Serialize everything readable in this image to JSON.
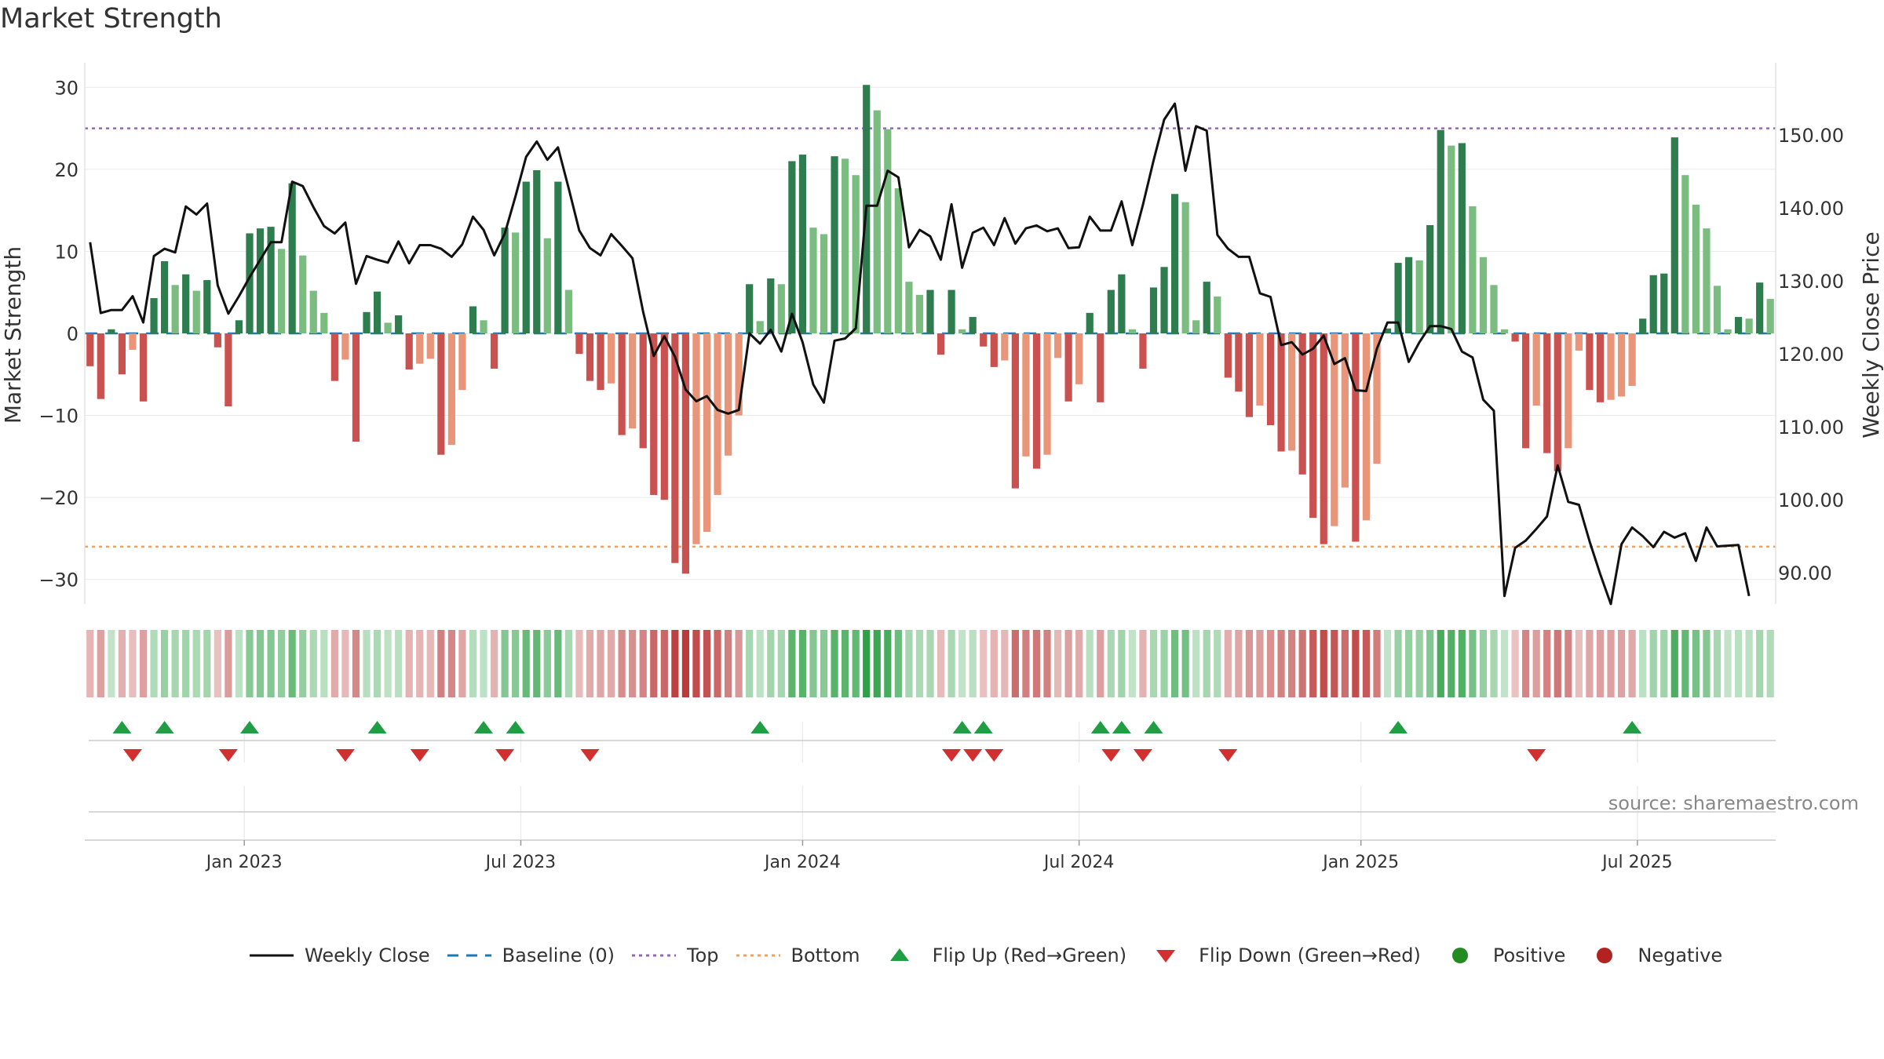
{
  "chart_data": {
    "type": "bar",
    "title": "Market Strength",
    "ylabel_left": "Market Strength",
    "ylabel_right": "Weekly Close Price",
    "y_left_range": [
      -33,
      33
    ],
    "y_left_ticks": [
      30,
      20,
      10,
      0,
      -10,
      -20,
      -30
    ],
    "y_left_tick_labels": [
      "30",
      "20",
      "10",
      "0",
      "−10",
      "−20",
      "−30"
    ],
    "y_right_range": [
      85.7,
      159.9
    ],
    "y_right_ticks": [
      150,
      140,
      130,
      120,
      110,
      100,
      90
    ],
    "y_right_tick_labels": [
      "150.00",
      "140.00",
      "130.00",
      "120.00",
      "110.00",
      "100.00",
      "90.00"
    ],
    "x_ticks": [
      {
        "label": "Jan 2023",
        "week": 15
      },
      {
        "label": "Jul 2023",
        "week": 41
      },
      {
        "label": "Jan 2024",
        "week": 67.5
      },
      {
        "label": "Jul 2024",
        "week": 93.5
      },
      {
        "label": "Jan 2025",
        "week": 120
      },
      {
        "label": "Jul 2025",
        "week": 146
      }
    ],
    "top_line": 25,
    "bottom_line": -26,
    "strength": [
      -4,
      -8,
      0.5,
      -5,
      -2,
      -8.3,
      4.3,
      8.8,
      5.9,
      7.2,
      5.2,
      6.5,
      -1.7,
      -8.9,
      1.6,
      12.2,
      12.8,
      13,
      10.3,
      18.3,
      9.5,
      5.2,
      2.5,
      -5.8,
      -3.2,
      -13.2,
      2.6,
      5.1,
      1.3,
      2.2,
      -4.4,
      -3.7,
      -3.1,
      -14.8,
      -13.6,
      -6.9,
      3.3,
      1.6,
      -4.3,
      12.9,
      12.3,
      18.5,
      19.9,
      11.6,
      18.5,
      5.3,
      -2.5,
      -5.8,
      -6.9,
      -6.1,
      -12.4,
      -11.6,
      -14,
      -19.7,
      -20.3,
      -28,
      -29.3,
      -25.7,
      -24.2,
      -19.7,
      -14.9,
      -10,
      6,
      1.5,
      6.7,
      6,
      21,
      21.8,
      12.9,
      12.1,
      21.6,
      21.3,
      19.3,
      30.3,
      27.2,
      24.9,
      17.7,
      6.3,
      4.7,
      5.3,
      -2.6,
      5.3,
      0.5,
      2,
      -1.6,
      -4.1,
      -3.3,
      -18.9,
      -15,
      -16.5,
      -14.8,
      -3,
      -8.3,
      -6.2,
      2.5,
      -8.4,
      5.3,
      7.2,
      0.5,
      -4.3,
      5.6,
      8.1,
      17,
      16,
      1.6,
      6.3,
      4.5,
      -5.4,
      -7.1,
      -10.2,
      -8.8,
      -11.2,
      -14.4,
      -14.3,
      -17.2,
      -22.5,
      -25.7,
      -23.5,
      -18.8,
      -25.4,
      -22.8,
      -15.9,
      0.6,
      8.6,
      9.3,
      8.9,
      13.2,
      24.8,
      22.9,
      23.2,
      15.5,
      9.3,
      5.9,
      0.5,
      -1,
      -14,
      -8.8,
      -14.6,
      -16.8,
      -14,
      -2.1,
      -6.9,
      -8.4,
      -8.1,
      -7.7,
      -6.4,
      1.8,
      7.1,
      7.3,
      23.9,
      19.3,
      15.7,
      12.8,
      5.8,
      0.5,
      2,
      1.8,
      6.2,
      4.2
    ],
    "weekly_close": [
      135.3,
      125.6,
      126,
      126,
      127.9,
      124.3,
      133.4,
      134.4,
      133.9,
      140.2,
      139.1,
      140.6,
      129.4,
      125.5,
      127.9,
      130.5,
      132.9,
      135.3,
      135.3,
      143.6,
      143,
      140.1,
      137.5,
      136.5,
      138,
      129.6,
      133.4,
      132.9,
      132.5,
      135.4,
      132.4,
      134.9,
      134.9,
      134.4,
      133.3,
      135,
      138.8,
      137,
      133.5,
      136.5,
      141.6,
      147,
      149.1,
      146.6,
      148.3,
      142.7,
      136.9,
      134.5,
      133.5,
      136.4,
      134.8,
      133.1,
      125.8,
      119.7,
      122.4,
      119.6,
      115.1,
      113.5,
      114.2,
      112.3,
      111.8,
      112.3,
      122.8,
      121.4,
      123.3,
      120.3,
      125.5,
      121.6,
      115.8,
      113.3,
      121.8,
      122.1,
      123.5,
      140.3,
      140.3,
      145.1,
      144.2,
      134.6,
      137,
      136.1,
      132.9,
      140.5,
      131.8,
      136.6,
      137.3,
      134.9,
      138.6,
      135.1,
      137.2,
      137.6,
      136.8,
      137.2,
      134.5,
      134.6,
      138.8,
      136.9,
      136.9,
      140.9,
      134.9,
      140.4,
      146.5,
      152.1,
      154.3,
      145.1,
      151.2,
      150.6,
      136.3,
      134.4,
      133.3,
      133.3,
      128.3,
      127.8,
      121.2,
      121.6,
      119.9,
      120.7,
      122.5,
      118.6,
      119.4,
      115,
      114.9,
      120.7,
      124.3,
      124.3,
      118.9,
      121.6,
      123.8,
      123.8,
      123.4,
      120.3,
      119.5,
      113.7,
      112.2,
      86.8,
      93.4,
      94.4,
      96,
      97.7,
      104.7,
      99.7,
      99.3,
      94.3,
      89.8,
      85.7,
      93.9,
      96.2,
      95,
      93.5,
      95.6,
      94.8,
      95.4,
      91.6,
      96.2,
      93.6,
      93.7,
      93.8,
      86.8
    ],
    "flip_up_weeks": [
      3,
      7,
      15,
      27,
      37,
      40,
      63,
      82,
      84,
      95,
      97,
      100,
      123,
      145
    ],
    "flip_down_weeks": [
      4,
      13,
      24,
      31,
      39,
      47,
      81,
      83,
      85,
      96,
      99,
      107,
      136
    ],
    "regime_colors": {
      "positive": "#2e7d4f",
      "positive_fading": "#7bbd80",
      "negative": "#c95150",
      "negative_fading": "#e8957a",
      "flip_up": "#1f9e44",
      "flip_down": "#d32f2f",
      "top_line": "#9467bd",
      "bottom_line": "#f0a060",
      "baseline": "#1f77b4",
      "close_line": "#111111"
    },
    "legend": [
      {
        "label": "Weekly Close",
        "symbol": "solid-line",
        "color": "#111111"
      },
      {
        "label": "Baseline (0)",
        "symbol": "dashed-line",
        "color": "#1f77b4"
      },
      {
        "label": "Top",
        "symbol": "dotted-line",
        "color": "#9467bd"
      },
      {
        "label": "Bottom",
        "symbol": "dotted-line",
        "color": "#f0a060"
      },
      {
        "label": "Flip Up (Red→Green)",
        "symbol": "triangle-up",
        "color": "#1f9e44"
      },
      {
        "label": "Flip Down (Green→Red)",
        "symbol": "triangle-down",
        "color": "#d32f2f"
      },
      {
        "label": "Positive",
        "symbol": "circle",
        "color": "#228b22"
      },
      {
        "label": "Negative",
        "symbol": "circle",
        "color": "#b22222"
      }
    ],
    "source": "source: sharemaestro.com"
  }
}
